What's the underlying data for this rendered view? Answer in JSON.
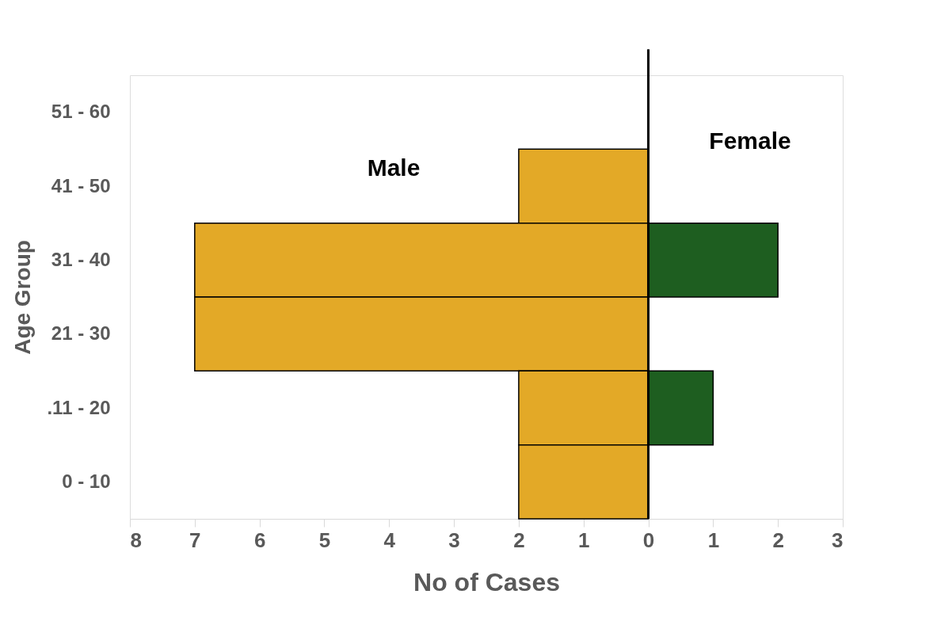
{
  "chart_data": {
    "type": "bar",
    "orientation": "horizontal",
    "xlabel": "No of Cases",
    "ylabel": "Age Group",
    "categories": [
      "51 - 60",
      "41 - 50",
      "31 - 40",
      "21 - 30",
      ".11 - 20",
      "0 - 10"
    ],
    "series": [
      {
        "color": "#e3a927",
        "values": [
          null,
          -2,
          -7,
          -7,
          -2,
          -2
        ]
      },
      {
        "color": "#1e5e20",
        "values": [
          null,
          null,
          2,
          null,
          1,
          null
        ]
      }
    ],
    "xlim": [
      -8,
      3
    ],
    "xticks": [
      {
        "value": -8,
        "label": "8"
      },
      {
        "value": -7,
        "label": "7"
      },
      {
        "value": -6,
        "label": "6"
      },
      {
        "value": -5,
        "label": "5"
      },
      {
        "value": -4,
        "label": "4"
      },
      {
        "value": -3,
        "label": "3"
      },
      {
        "value": -2,
        "label": "2"
      },
      {
        "value": -1,
        "label": "1"
      },
      0,
      1,
      2,
      3
    ],
    "ref_lines": [
      {
        "axis": "x",
        "value": 0,
        "color": "#000000"
      }
    ],
    "annotations": [
      "Male",
      "Female"
    ],
    "grid": false
  }
}
